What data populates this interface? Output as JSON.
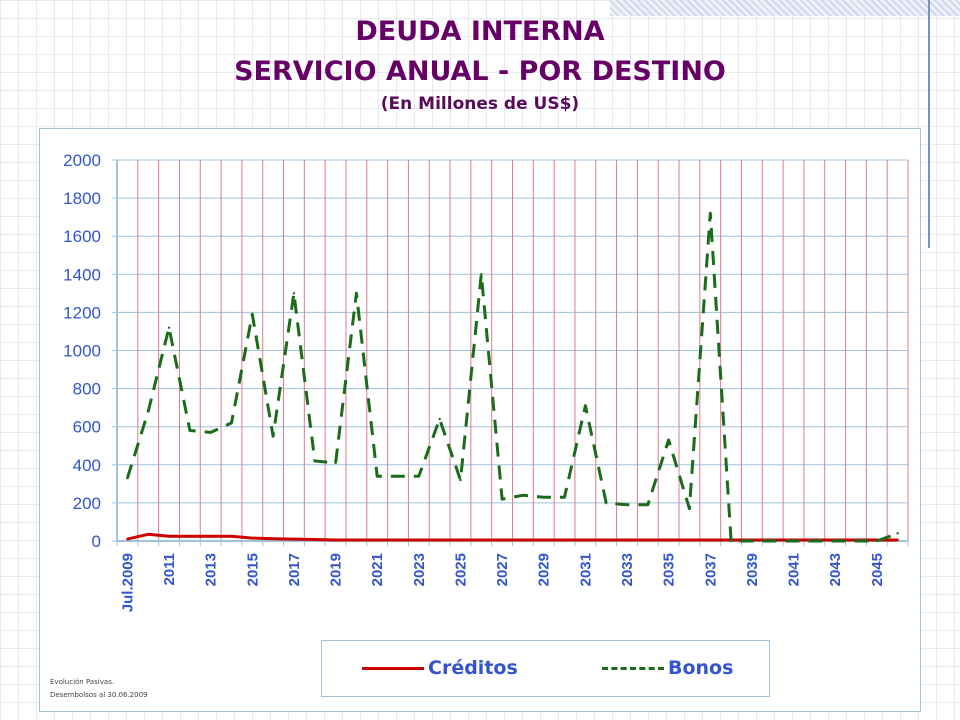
{
  "slide": {
    "title_line1": "DEUDA INTERNA",
    "title_line2": "SERVICIO ANUAL - POR DESTINO",
    "title_line3": "(En Millones de US$)",
    "footnote_line1": "Evolución Pasivas.",
    "footnote_line2": "Desembolsos al 30.06.2009"
  },
  "colors": {
    "title": "#660066",
    "axis_text": "#3355cc",
    "creditos": "#cc0000",
    "bonos": "#1a6b1a",
    "vertical_grid": "#e07a8f",
    "horizontal_grid": "#9fc3d9"
  },
  "chart_data": {
    "type": "line",
    "title": "",
    "xlabel": "",
    "ylabel": "",
    "ylim": [
      0,
      2000
    ],
    "yticks": [
      0,
      200,
      400,
      600,
      800,
      1000,
      1200,
      1400,
      1600,
      1800,
      2000
    ],
    "categories": [
      "Jul.2009",
      "2010",
      "2011",
      "2012",
      "2013",
      "2014",
      "2015",
      "2016",
      "2017",
      "2018",
      "2019",
      "2020",
      "2021",
      "2022",
      "2023",
      "2024",
      "2025",
      "2026",
      "2027",
      "2028",
      "2029",
      "2030",
      "2031",
      "2032",
      "2033",
      "2034",
      "2035",
      "2036",
      "2037",
      "2038",
      "2039",
      "2040",
      "2041",
      "2042",
      "2043",
      "2044",
      "2045",
      "2046"
    ],
    "tick_labels": [
      "Jul.2009",
      "",
      "2011",
      "",
      "2013",
      "",
      "2015",
      "",
      "2017",
      "",
      "2019",
      "",
      "2021",
      "",
      "2023",
      "",
      "2025",
      "",
      "2027",
      "",
      "2029",
      "",
      "2031",
      "",
      "2033",
      "",
      "2035",
      "",
      "2037",
      "",
      "2039",
      "",
      "2041",
      "",
      "2043",
      "",
      "2045",
      ""
    ],
    "grid": true,
    "legend_position": "bottom",
    "series": [
      {
        "name": "Créditos",
        "style": "solid",
        "values": [
          10,
          35,
          25,
          25,
          25,
          25,
          15,
          12,
          10,
          8,
          5,
          5,
          5,
          5,
          5,
          5,
          5,
          5,
          5,
          5,
          5,
          5,
          5,
          5,
          5,
          5,
          5,
          5,
          5,
          5,
          5,
          5,
          5,
          5,
          5,
          5,
          5,
          5
        ]
      },
      {
        "name": "Bonos",
        "style": "dashed",
        "values": [
          330,
          680,
          1120,
          580,
          570,
          620,
          1190,
          550,
          1300,
          420,
          410,
          1300,
          340,
          340,
          340,
          640,
          320,
          1400,
          220,
          240,
          230,
          230,
          710,
          200,
          190,
          190,
          530,
          170,
          1720,
          0,
          0,
          0,
          0,
          0,
          0,
          0,
          0,
          40
        ]
      }
    ]
  }
}
